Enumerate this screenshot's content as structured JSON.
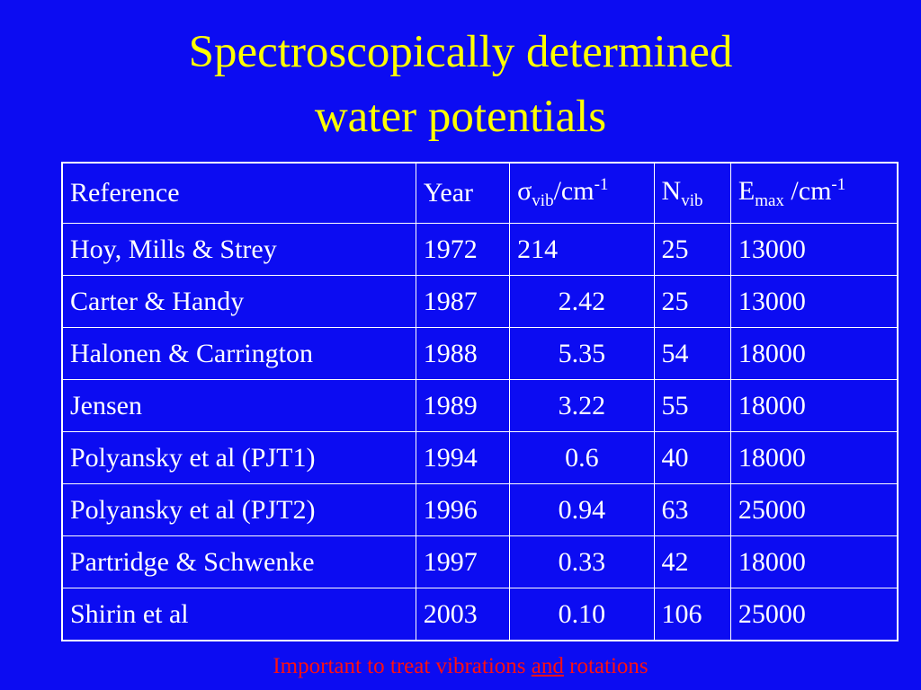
{
  "header": {
    "title_lines": [
      "Spectroscopically determined",
      "water potentials"
    ]
  },
  "table": {
    "header": [
      [
        {
          "text": "Reference"
        }
      ],
      [
        {
          "text": "Year"
        }
      ],
      [
        {
          "text": "σ"
        },
        {
          "text": "vib",
          "pos": "sub"
        },
        {
          "text": "/cm"
        },
        {
          "text": "-1",
          "pos": "sup"
        }
      ],
      [
        {
          "text": "N"
        },
        {
          "text": "vib",
          "pos": "sub"
        }
      ],
      [
        {
          "text": "E"
        },
        {
          "text": "max",
          "pos": "sub"
        },
        {
          "text": " /cm"
        },
        {
          "text": "-1",
          "pos": "sup"
        }
      ]
    ],
    "rows": [
      [
        "Hoy, Mills & Strey",
        "1972",
        "214",
        "25",
        "13000"
      ],
      [
        "Carter & Handy",
        "1987",
        "2.42",
        "25",
        "13000"
      ],
      [
        "Halonen & Carrington",
        "1988",
        "5.35",
        "54",
        "18000"
      ],
      [
        "Jensen",
        "1989",
        "3.22",
        "55",
        "18000"
      ],
      [
        "Polyansky et al (PJT1)",
        "1994",
        "0.6",
        "40",
        "18000"
      ],
      [
        "Polyansky et al (PJT2)",
        "1996",
        "0.94",
        "63",
        "25000"
      ],
      [
        "Partridge & Schwenke",
        "1997",
        "0.33",
        "42",
        "18000"
      ],
      [
        "Shirin et al",
        "2003",
        "0.10",
        "106",
        "25000"
      ]
    ]
  },
  "footnote": [
    {
      "text": "Important to treat vibrations "
    },
    {
      "text": "and",
      "pos": "underline"
    },
    {
      "text": " rotations"
    }
  ]
}
